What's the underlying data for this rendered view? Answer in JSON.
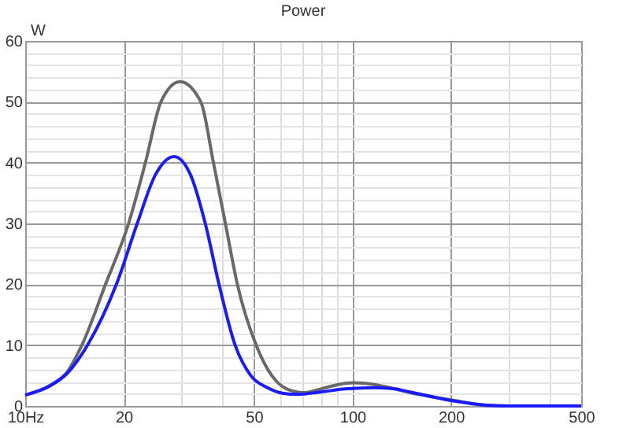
{
  "chart_data": {
    "type": "line",
    "title": "Power",
    "ylabel": "W",
    "log": "x",
    "grid": true,
    "legend": false,
    "marker": "none",
    "line_style": "solid",
    "xlim": [
      10,
      500
    ],
    "ylim": [
      0,
      60
    ],
    "xticks": [
      {
        "value": 10,
        "label": "10Hz"
      },
      20,
      {
        "value": 30,
        "label": null
      },
      {
        "value": 40,
        "label": null
      },
      50,
      {
        "value": 60,
        "label": null
      },
      {
        "value": 70,
        "label": null
      },
      {
        "value": 80,
        "label": null
      },
      {
        "value": 90,
        "label": null
      },
      100,
      200,
      {
        "value": 300,
        "label": null
      },
      {
        "value": 400,
        "label": null
      },
      500
    ],
    "yticks": [
      0,
      {
        "value": 2,
        "label": null
      },
      {
        "value": 4,
        "label": null
      },
      {
        "value": 6,
        "label": null
      },
      {
        "value": 8,
        "label": null
      },
      10,
      {
        "value": 12,
        "label": null
      },
      {
        "value": 14,
        "label": null
      },
      {
        "value": 16,
        "label": null
      },
      {
        "value": 18,
        "label": null
      },
      20,
      {
        "value": 22,
        "label": null
      },
      {
        "value": 24,
        "label": null
      },
      {
        "value": 26,
        "label": null
      },
      {
        "value": 28,
        "label": null
      },
      30,
      {
        "value": 32,
        "label": null
      },
      {
        "value": 34,
        "label": null
      },
      {
        "value": 36,
        "label": null
      },
      {
        "value": 38,
        "label": null
      },
      40,
      {
        "value": 42,
        "label": null
      },
      {
        "value": 44,
        "label": null
      },
      {
        "value": 46,
        "label": null
      },
      {
        "value": 48,
        "label": null
      },
      50,
      {
        "value": 52,
        "label": null
      },
      {
        "value": 54,
        "label": null
      },
      {
        "value": 56,
        "label": null
      },
      {
        "value": 58,
        "label": null
      },
      60
    ],
    "series": [
      {
        "color": "#696969",
        "x": [
          10,
          12,
          13.4,
          14.9,
          17.6,
          20.7,
          23.3,
          26,
          29.7,
          34.4,
          37.6,
          40.9,
          44.5,
          50.8,
          56.7,
          63,
          70.8,
          80,
          90,
          101,
          115,
          130,
          150,
          200,
          260,
          300,
          500
        ],
        "values": [
          1.8,
          3.5,
          5.5,
          10,
          20,
          30,
          40,
          50,
          53.3,
          50,
          40,
          30,
          20,
          10,
          5,
          2.8,
          2.2,
          2.8,
          3.5,
          3.8,
          3.6,
          3.0,
          2.2,
          1.0,
          0.1,
          0,
          0
        ]
      },
      {
        "color": "#1a1aff",
        "x": [
          10,
          12,
          13.4,
          15.5,
          19,
          22,
          25,
          28.5,
          32,
          35.5,
          39.1,
          43.8,
          48.9,
          55,
          61,
          68,
          80,
          95,
          118,
          135,
          150,
          200,
          260,
          300,
          500
        ],
        "values": [
          1.8,
          3.4,
          5.3,
          10,
          20,
          30,
          38,
          41,
          38,
          30,
          20,
          10,
          5,
          3,
          2.1,
          1.9,
          2.3,
          2.8,
          3.0,
          2.8,
          2.3,
          0.9,
          0.1,
          0,
          0
        ]
      }
    ]
  }
}
